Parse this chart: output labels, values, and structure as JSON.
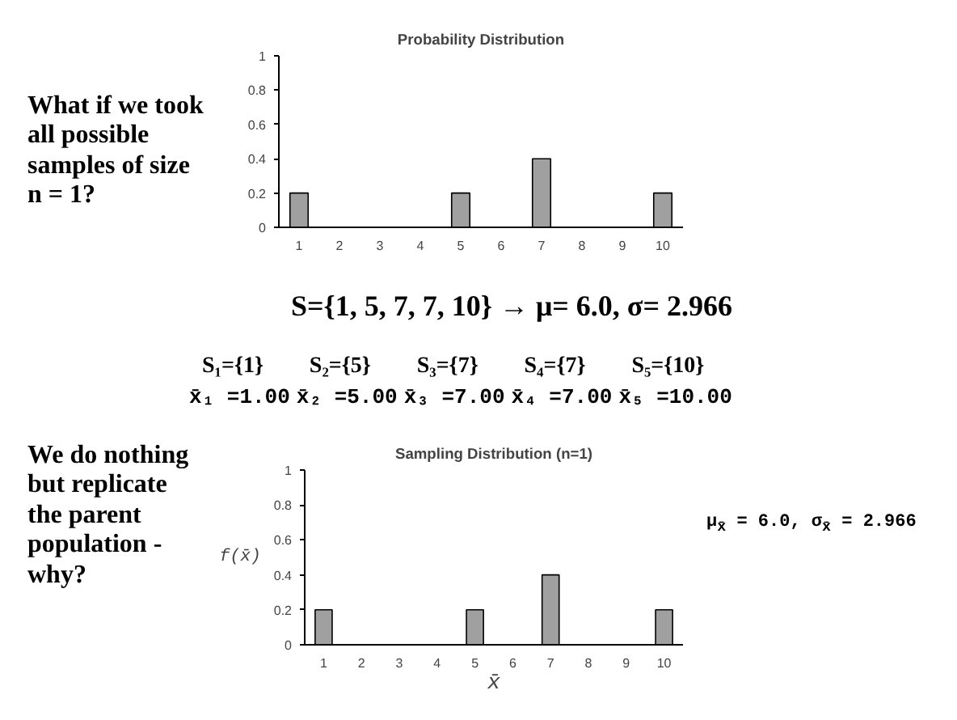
{
  "chart_data": [
    {
      "type": "bar",
      "title": "Probability Distribution",
      "categories": [
        "1",
        "2",
        "3",
        "4",
        "5",
        "6",
        "7",
        "8",
        "9",
        "10"
      ],
      "values": [
        0.2,
        0,
        0,
        0,
        0.2,
        0,
        0.4,
        0,
        0,
        0.2
      ],
      "color": "#a0a0a0",
      "ylim": [
        0,
        1
      ],
      "yticks": [
        0,
        0.2,
        0.4,
        0.6,
        0.8,
        1
      ],
      "grid": false,
      "annotations": [
        "What if we took all possible samples of size n = 1?",
        "S={1, 5, 7, 7, 10} → μ= 6.0, σ= 2.966"
      ]
    },
    {
      "type": "bar",
      "title": "Sampling Distribution (n=1)",
      "categories": [
        "1",
        "2",
        "3",
        "4",
        "5",
        "6",
        "7",
        "8",
        "9",
        "10"
      ],
      "values": [
        0.2,
        0,
        0,
        0,
        0.2,
        0,
        0.4,
        0,
        0,
        0.2
      ],
      "color": "#a0a0a0",
      "ylim": [
        0,
        1
      ],
      "yticks": [
        0,
        0.2,
        0.4,
        0.6,
        0.8,
        1
      ],
      "grid": false,
      "xlabel": "x̄",
      "ylabel": "f(x̄)",
      "annotations": [
        "S₁={1}",
        "S₂={5}",
        "S₃={7}",
        "S₄={7}",
        "S₅={10}",
        "x̄₁ =1.00",
        "x̄₂ =5.00",
        "x̄₃ =7.00",
        "x̄₄ =7.00",
        "x̄₅ =10.00",
        "We do nothing but replicate the parent population - why?",
        "μ$_{x̄}$ = 6.0, σ$_{x̄}$ = 2.966"
      ]
    }
  ]
}
